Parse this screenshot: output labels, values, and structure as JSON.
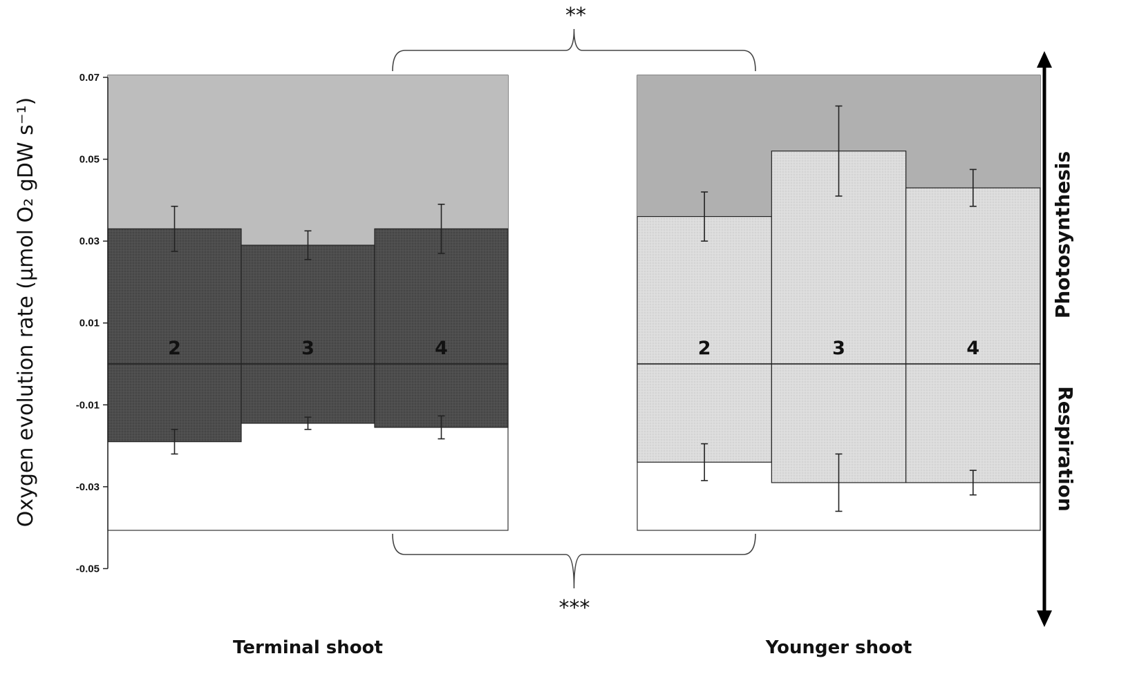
{
  "chart_data": {
    "type": "bar",
    "ylabel": "Oxygen evolution rate (µmol O₂ gDW s⁻¹)",
    "ylim": [
      -0.05,
      0.07
    ],
    "yticks": [
      "0.07",
      "0.05",
      "0.03",
      "0.01",
      "-0.01",
      "-0.03",
      "-0.05"
    ],
    "grid": false,
    "groups": [
      {
        "name": "Terminal shoot",
        "photosynthesis_bg_color": "#bdbdbd",
        "bar_color": "#4d4d4d",
        "bars": [
          {
            "label": "2",
            "photosynthesis": 0.033,
            "photosynthesis_err": 0.0055,
            "respiration": -0.019,
            "respiration_err": 0.003
          },
          {
            "label": "3",
            "photosynthesis": 0.029,
            "photosynthesis_err": 0.0035,
            "respiration": -0.0145,
            "respiration_err": 0.0015
          },
          {
            "label": "4",
            "photosynthesis": 0.033,
            "photosynthesis_err": 0.006,
            "respiration": -0.0155,
            "respiration_err": 0.0028
          }
        ]
      },
      {
        "name": "Younger shoot",
        "photosynthesis_bg_color": "#b0b0b0",
        "bar_color": "#dcdcdc",
        "bars": [
          {
            "label": "2",
            "photosynthesis": 0.036,
            "photosynthesis_err": 0.006,
            "respiration": -0.024,
            "respiration_err": 0.0045
          },
          {
            "label": "3",
            "photosynthesis": 0.052,
            "photosynthesis_err": 0.011,
            "respiration": -0.029,
            "respiration_err": 0.007
          },
          {
            "label": "4",
            "photosynthesis": 0.043,
            "photosynthesis_err": 0.0045,
            "respiration": -0.029,
            "respiration_err": 0.003
          }
        ]
      }
    ],
    "annotations": {
      "photosynthesis_significance": "**",
      "respiration_significance": "***",
      "arrow_up_label": "Photosynthesis",
      "arrow_down_label": "Respiration"
    }
  }
}
